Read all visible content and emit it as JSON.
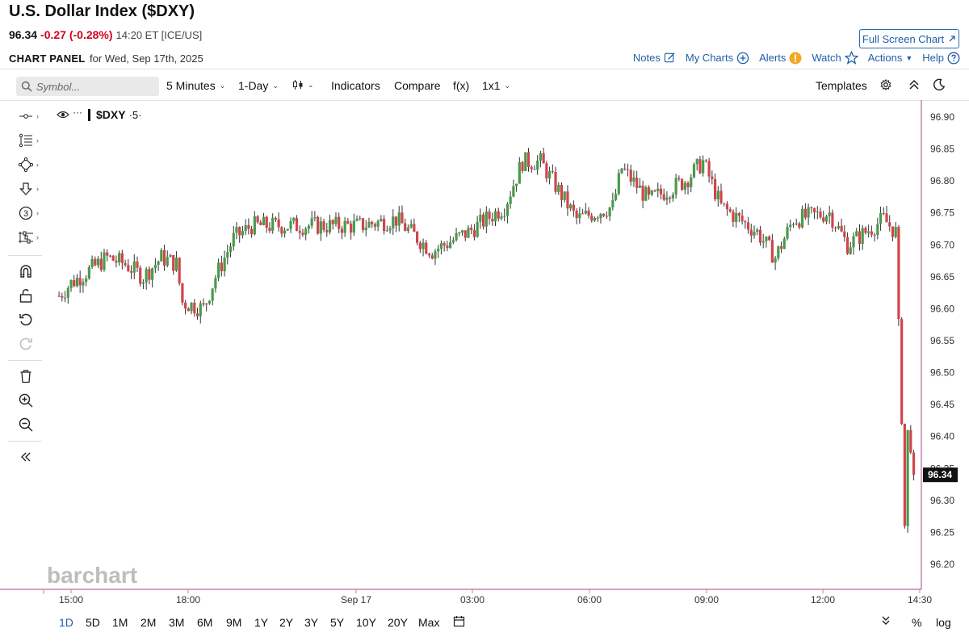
{
  "header": {
    "title": "U.S. Dollar Index ($DXY)",
    "last": "96.34",
    "change": "-0.27 (-0.28%)",
    "time": "14:20 ET [ICE/US]",
    "fullscreen_label": "Full Screen Chart",
    "panel_label": "CHART PANEL",
    "panel_date": "for Wed, Sep 17th, 2025"
  },
  "top_links": {
    "notes": "Notes",
    "my_charts": "My Charts",
    "alerts": "Alerts",
    "watch": "Watch",
    "actions": "Actions",
    "help": "Help"
  },
  "toolbar": {
    "search_placeholder": "Symbol...",
    "interval": "5 Minutes",
    "period": "1-Day",
    "indicators": "Indicators",
    "compare": "Compare",
    "fx": "f(x)",
    "layout": "1x1",
    "templates": "Templates"
  },
  "chart_label": {
    "dots": "···",
    "symbol": "$DXY",
    "interval": "·5·"
  },
  "watermark": "barchart",
  "ranges": [
    "1D",
    "5D",
    "1M",
    "2M",
    "3M",
    "6M",
    "9M",
    "1Y",
    "2Y",
    "3Y",
    "5Y",
    "10Y",
    "20Y",
    "Max"
  ],
  "active_range": "1D",
  "bottom_right": {
    "percent": "%",
    "log": "log"
  },
  "colors": {
    "up": "#4a9a4a",
    "down": "#d0454b",
    "accent": "#1f5fa8",
    "price_tag": "#111111",
    "axis_line": "#b14283"
  },
  "chart_data": {
    "type": "ohlc",
    "symbol": "$DXY",
    "y_ticks": [
      "96.90",
      "96.85",
      "96.80",
      "96.75",
      "96.70",
      "96.65",
      "96.60",
      "96.55",
      "96.50",
      "96.45",
      "96.40",
      "96.35",
      "96.30",
      "96.25",
      "96.20"
    ],
    "ylim": [
      96.19,
      96.93
    ],
    "x_ticks": [
      "15:00",
      "18:00",
      "Sep 17",
      "03:00",
      "06:00",
      "09:00",
      "12:00",
      "14:30"
    ],
    "last_price": "96.34",
    "bars_approx": [
      {
        "t": "14:40",
        "c": 96.62
      },
      {
        "t": "15:00",
        "c": 96.64
      },
      {
        "t": "15:30",
        "c": 96.66
      },
      {
        "t": "16:00",
        "c": 96.68
      },
      {
        "t": "16:30",
        "c": 96.67
      },
      {
        "t": "17:00",
        "c": 96.65
      },
      {
        "t": "17:30",
        "c": 96.68
      },
      {
        "t": "17:55",
        "c": 96.67
      },
      {
        "t": "18:05",
        "c": 96.61
      },
      {
        "t": "18:40",
        "c": 96.6
      },
      {
        "t": "19:00",
        "c": 96.65
      },
      {
        "t": "19:30",
        "c": 96.71
      },
      {
        "t": "20:00",
        "c": 96.73
      },
      {
        "t": "21:00",
        "c": 96.73
      },
      {
        "t": "22:00",
        "c": 96.73
      },
      {
        "t": "23:00",
        "c": 96.73
      },
      {
        "t": "00:00",
        "c": 96.74
      },
      {
        "t": "01:00",
        "c": 96.69
      },
      {
        "t": "02:00",
        "c": 96.72
      },
      {
        "t": "03:00",
        "c": 96.76
      },
      {
        "t": "03:30",
        "c": 96.83
      },
      {
        "t": "04:00",
        "c": 96.83
      },
      {
        "t": "05:00",
        "c": 96.74
      },
      {
        "t": "06:00",
        "c": 96.76
      },
      {
        "t": "06:15",
        "c": 96.82
      },
      {
        "t": "07:00",
        "c": 96.77
      },
      {
        "t": "08:00",
        "c": 96.8
      },
      {
        "t": "08:30",
        "c": 96.83
      },
      {
        "t": "09:00",
        "c": 96.76
      },
      {
        "t": "10:00",
        "c": 96.72
      },
      {
        "t": "10:30",
        "c": 96.68
      },
      {
        "t": "11:00",
        "c": 96.74
      },
      {
        "t": "12:00",
        "c": 96.75
      },
      {
        "t": "12:30",
        "c": 96.7
      },
      {
        "t": "13:30",
        "c": 96.74
      },
      {
        "t": "13:50",
        "c": 96.72
      },
      {
        "t": "14:00",
        "c": 96.42
      },
      {
        "t": "14:05",
        "c": 96.26
      },
      {
        "t": "14:10",
        "c": 96.41
      },
      {
        "t": "14:20",
        "c": 96.34
      }
    ]
  }
}
